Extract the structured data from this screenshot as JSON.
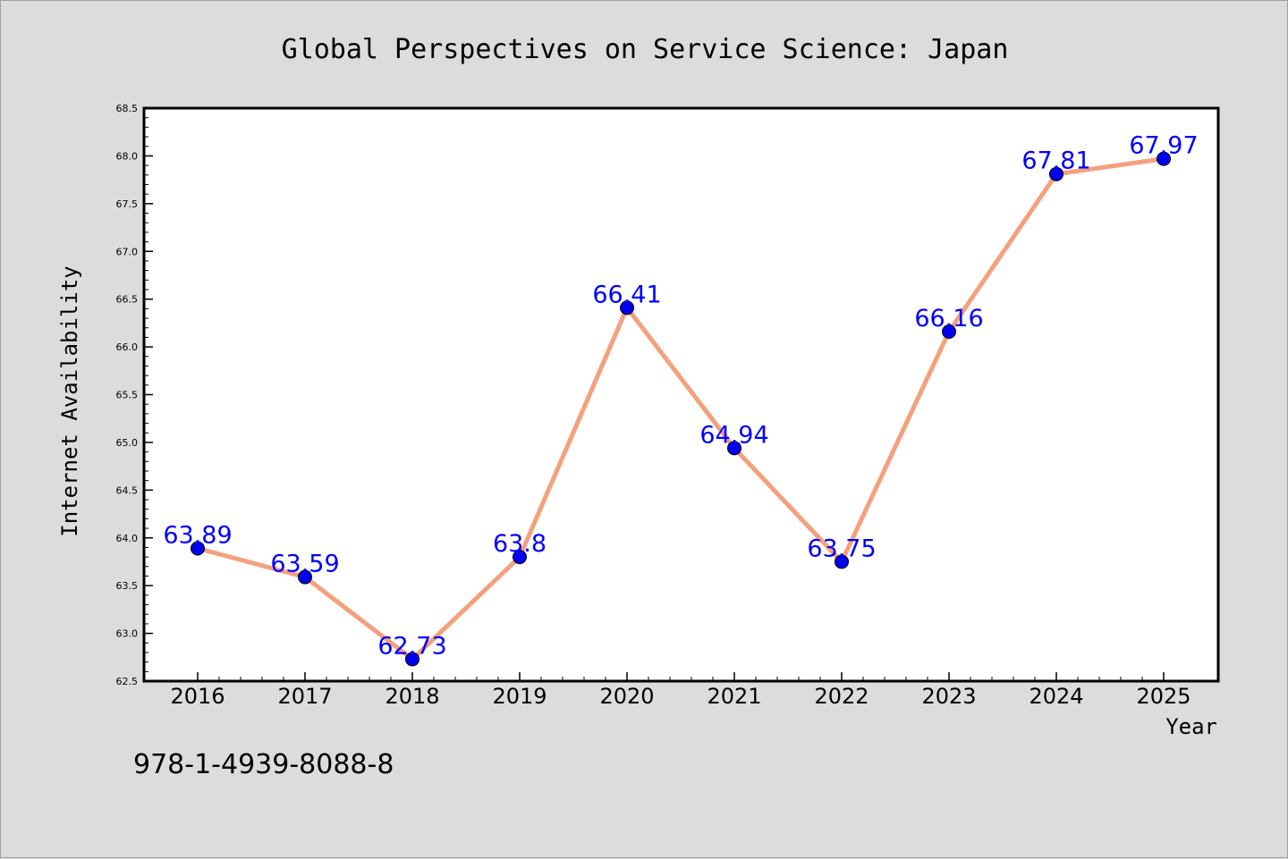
{
  "chart_data": {
    "type": "line",
    "title": "Global Perspectives on Service Science: Japan",
    "xlabel": "Year",
    "ylabel": "Internet Availability",
    "categories": [
      "2016",
      "2017",
      "2018",
      "2019",
      "2020",
      "2021",
      "2022",
      "2023",
      "2024",
      "2025"
    ],
    "series": [
      {
        "values": [
          63.89,
          63.59,
          62.73,
          63.8,
          66.41,
          64.94,
          63.75,
          66.16,
          67.81,
          67.97
        ],
        "data_labels": [
          "63.89",
          "63.59",
          "62.73",
          "63.8",
          "66.41",
          "64.94",
          "63.75",
          "66.16",
          "67.81",
          "67.97"
        ],
        "line_color": "#f4a07e",
        "marker_color": "#0000ee"
      }
    ],
    "ylim": [
      62.5,
      68.5
    ],
    "yticks": [
      "62.5",
      "63.0",
      "63.5",
      "64.0",
      "64.5",
      "65.0",
      "65.5",
      "66.0",
      "66.5",
      "67.0",
      "67.5",
      "68.0",
      "68.5"
    ],
    "grid": false,
    "legend": "none"
  },
  "footer": {
    "isbn": "978-1-4939-8088-8"
  },
  "colors": {
    "background": "#dcdcdc",
    "plot_background": "#ffffff",
    "label_color": "#0000ff"
  }
}
